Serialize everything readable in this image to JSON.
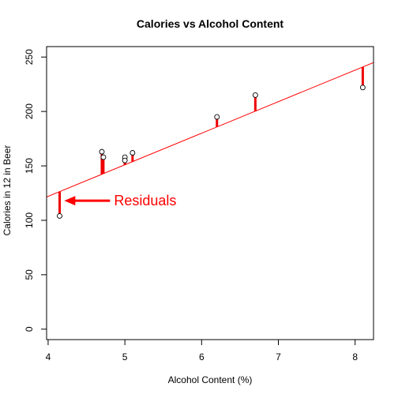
{
  "chart_data": {
    "type": "scatter",
    "title": "Calories vs Alcohol Content",
    "xlabel": "Alcohol Content (%)",
    "ylabel": "Calories in 12 in Beer",
    "xlim": [
      3.98,
      8.24
    ],
    "ylim": [
      -9.6,
      259.6
    ],
    "x_ticks": [
      4,
      5,
      6,
      7,
      8
    ],
    "y_ticks": [
      0,
      50,
      100,
      150,
      200,
      250
    ],
    "grid": false,
    "legend": "none",
    "series": [
      {
        "points": [
          {
            "x": 4.15,
            "y": 104
          },
          {
            "x": 4.7,
            "y": 163
          },
          {
            "x": 4.72,
            "y": 158
          },
          {
            "x": 5.0,
            "y": 158
          },
          {
            "x": 5.0,
            "y": 155
          },
          {
            "x": 5.1,
            "y": 162
          },
          {
            "x": 6.2,
            "y": 195
          },
          {
            "x": 6.7,
            "y": 215
          },
          {
            "x": 8.1,
            "y": 222
          }
        ]
      }
    ],
    "regression_line": {
      "intercept": 6.0,
      "slope": 29.0
    },
    "colors": {
      "points": "#000000",
      "fit_line": "#ff0000",
      "residuals": "#ee0000",
      "annotation": "#ff0000"
    },
    "annotations": [
      {
        "text": "Residuals",
        "arrow_to": {
          "x": 4.2,
          "y": 118
        }
      }
    ]
  }
}
